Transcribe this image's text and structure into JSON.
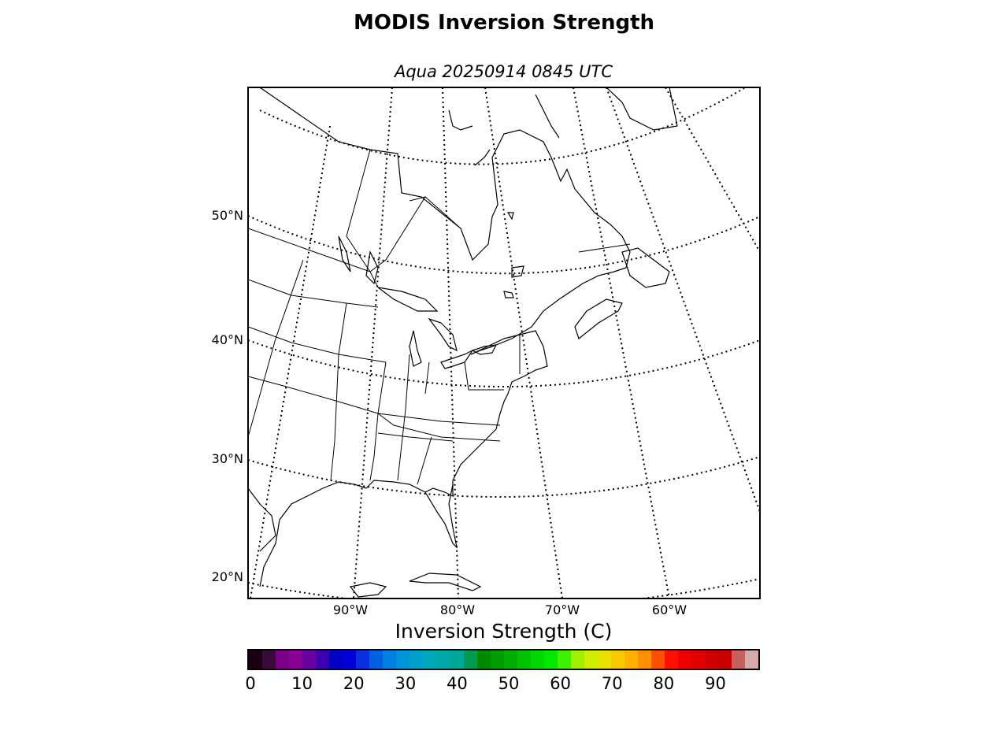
{
  "title": "MODIS Inversion Strength",
  "subtitle": "Aqua 20250914 0845 UTC",
  "map": {
    "lat_labels": [
      "50°N",
      "40°N",
      "30°N",
      "20°N"
    ],
    "lon_labels": [
      "90°W",
      "80°W",
      "70°W",
      "60°W"
    ],
    "gridline_color": "#000000",
    "coastline_color": "#000000"
  },
  "colorbar": {
    "label": "Inversion Strength (C)",
    "min": 0,
    "max": 98,
    "ticks": [
      "0",
      "10",
      "20",
      "30",
      "40",
      "50",
      "60",
      "70",
      "80",
      "90"
    ],
    "colors": [
      "#1a0010",
      "#3a0a38",
      "#7a0085",
      "#8a0095",
      "#6a00a0",
      "#3c00b0",
      "#0000c4",
      "#0000d8",
      "#0a30e0",
      "#0060e0",
      "#0080e0",
      "#0095d8",
      "#00a0cc",
      "#00a8b8",
      "#00a8a8",
      "#00a898",
      "#009a50",
      "#008a00",
      "#009c00",
      "#00ae00",
      "#00c200",
      "#00d800",
      "#00ea00",
      "#40f000",
      "#a0f000",
      "#d0ee00",
      "#e8e000",
      "#f8c800",
      "#ffb000",
      "#ff9000",
      "#ff5000",
      "#ff1000",
      "#ee0000",
      "#e00000",
      "#d00000",
      "#c80000",
      "#c86060",
      "#d4aaaa"
    ]
  }
}
